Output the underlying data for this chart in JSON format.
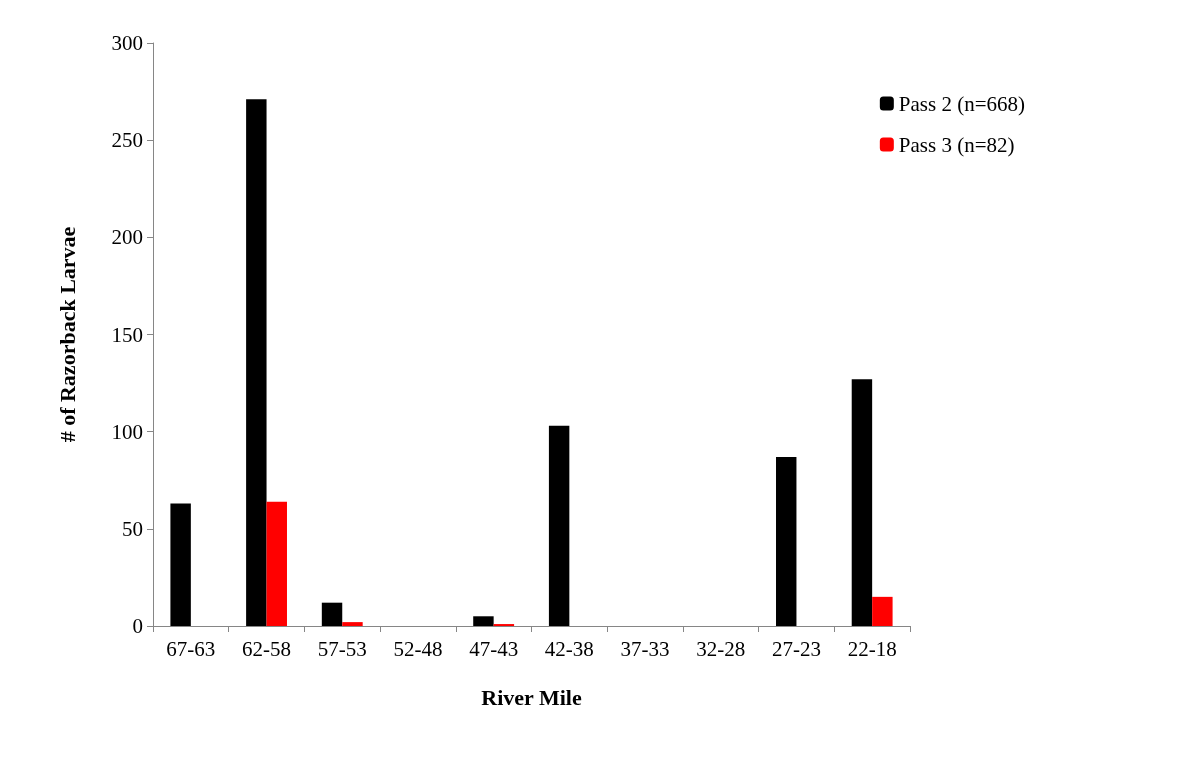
{
  "chart_data": {
    "type": "bar",
    "xlabel": "River Mile",
    "ylabel": "# of Razorback Larvae",
    "categories": [
      "67-63",
      "62-58",
      "57-53",
      "52-48",
      "47-43",
      "42-38",
      "37-33",
      "32-28",
      "27-23",
      "22-18"
    ],
    "series": [
      {
        "name": "Pass 2 (n=668)",
        "color": "#000000",
        "values": [
          63,
          271,
          12,
          0,
          5,
          103,
          0,
          0,
          87,
          127
        ]
      },
      {
        "name": "Pass 3 (n=82)",
        "color": "#ff0000",
        "values": [
          0,
          64,
          2,
          0,
          1,
          0,
          0,
          0,
          0,
          15
        ]
      }
    ],
    "ylim": [
      0,
      300
    ],
    "yticks": [
      0,
      50,
      100,
      150,
      200,
      250,
      300
    ],
    "grid": false,
    "legend": "top right"
  }
}
